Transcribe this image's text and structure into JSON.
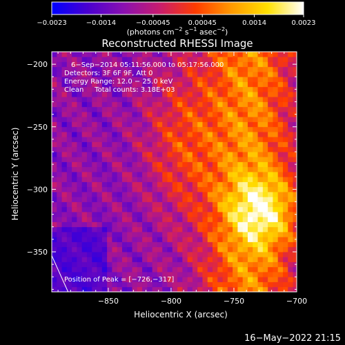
{
  "chart_data": {
    "type": "heatmap",
    "title": "Reconstructed RHESSI Image",
    "xlabel": "Heliocentric X (arcsec)",
    "ylabel": "Heliocentric Y (arcsec)",
    "xlim": [
      -895,
      -700
    ],
    "ylim": [
      -382,
      -190
    ],
    "x_ticks": [
      -850,
      -800,
      -750,
      -700
    ],
    "y_ticks": [
      -200,
      -250,
      -300,
      -350
    ],
    "x_tick_labels": [
      "−850",
      "−800",
      "−750",
      "−700"
    ],
    "y_tick_labels": [
      "−200",
      "−250",
      "−300",
      "−350"
    ],
    "colorbar": {
      "min": -0.0023,
      "max": 0.0023,
      "ticks": [
        -0.0023,
        -0.0014,
        -0.00045,
        0.00045,
        0.0014,
        0.0023
      ],
      "tick_labels": [
        "−0.0023",
        "−0.0014",
        "−0.00045",
        "0.00045",
        "0.0014",
        "0.0023"
      ],
      "label_main": "(photons cm",
      "label_sup1": "−2",
      "label_mid1": " s",
      "label_sup2": "−1",
      "label_mid2": " asec",
      "label_sup3": "−2",
      "label_end": ")",
      "colors": [
        "#0000ff",
        "#4a00d0",
        "#8a10b0",
        "#c81c6e",
        "#ff3c00",
        "#ff9a00",
        "#ffe000",
        "#ffffff"
      ]
    },
    "annotations": [
      "6−Sep−2014 05:11:56.000 to 05:17:56.000",
      "Detectors: 3F 6F 9F, Att 0",
      "Energy Range: 12.0 − 25.0 keV",
      "Clean     Total counts: 3.18E+03"
    ],
    "peak_label": "Position of Peak = [−726,−317]",
    "peak": [
      -726,
      -317
    ],
    "limb": [
      [
        -895,
        -353
      ],
      [
        -882,
        -382
      ]
    ]
  },
  "footer": {
    "timestamp": "16−May−2022 21:15"
  }
}
